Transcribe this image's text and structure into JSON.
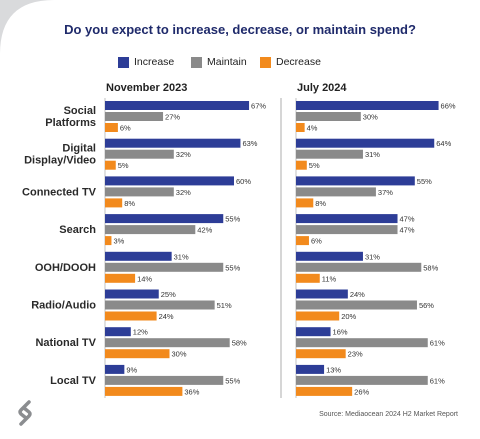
{
  "title": "Do you expect to increase, decrease, or maintain spend?",
  "legend": [
    {
      "name": "Increase",
      "color": "#2d3d97"
    },
    {
      "name": "Maintain",
      "color": "#8a8a8a"
    },
    {
      "name": "Decrease",
      "color": "#f28a1d"
    }
  ],
  "source": "Source: Mediaocean 2024 H2 Market Report",
  "chart_data": [
    {
      "type": "bar",
      "orientation": "horizontal",
      "title": "November 2023",
      "categories": [
        "Social Platforms",
        "Digital Display/Video",
        "Connected TV",
        "Search",
        "OOH/DOOH",
        "Radio/Audio",
        "National TV",
        "Local TV"
      ],
      "series": [
        {
          "name": "Increase",
          "values": [
            67,
            63,
            60,
            55,
            31,
            25,
            12,
            9
          ]
        },
        {
          "name": "Maintain",
          "values": [
            27,
            32,
            32,
            42,
            55,
            51,
            58,
            55
          ]
        },
        {
          "name": "Decrease",
          "values": [
            6,
            5,
            8,
            3,
            14,
            24,
            30,
            36
          ]
        }
      ],
      "value_suffix": "%"
    },
    {
      "type": "bar",
      "orientation": "horizontal",
      "title": "July 2024",
      "categories": [
        "Social Platforms",
        "Digital Display/Video",
        "Connected TV",
        "Search",
        "OOH/DOOH",
        "Radio/Audio",
        "National TV",
        "Local TV"
      ],
      "series": [
        {
          "name": "Increase",
          "values": [
            66,
            64,
            55,
            47,
            31,
            24,
            16,
            13
          ]
        },
        {
          "name": "Maintain",
          "values": [
            30,
            31,
            37,
            47,
            58,
            56,
            61,
            61
          ]
        },
        {
          "name": "Decrease",
          "values": [
            4,
            5,
            8,
            6,
            11,
            20,
            23,
            26
          ]
        }
      ],
      "value_suffix": "%"
    }
  ],
  "category_lines": [
    [
      "Social",
      "Platforms"
    ],
    [
      "Digital",
      "Display/Video"
    ],
    [
      "Connected TV"
    ],
    [
      "Search"
    ],
    [
      "OOH/DOOH"
    ],
    [
      "Radio/Audio"
    ],
    [
      "National TV"
    ],
    [
      "Local TV"
    ]
  ]
}
